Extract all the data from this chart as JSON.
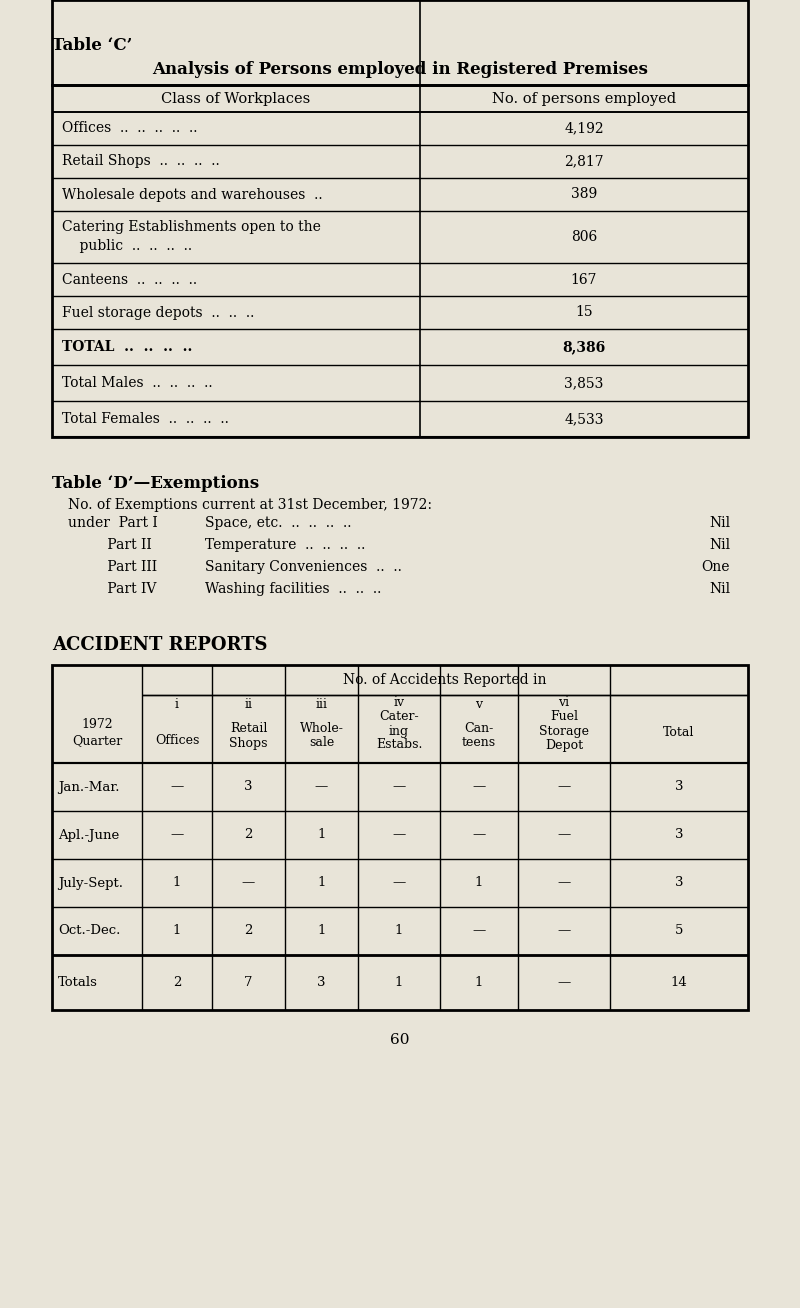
{
  "page_bg": "#e8e4d8",
  "table_c_title": "Table ‘C’",
  "table_c_subtitle": "Analysis of Persons employed in Registered Premises",
  "table_c_col1_header": "Class of Workplaces",
  "table_c_col2_header": "No. of persons employed",
  "table_c_rows": [
    [
      "Offices  ..  ..  ..  ..  ..",
      "4,192",
      false
    ],
    [
      "Retail Shops  ..  ..  ..  ..",
      "2,817",
      false
    ],
    [
      "Wholesale depots and warehouses  ..",
      "389",
      false
    ],
    [
      "Catering Establishments open to the\n    public  ..  ..  ..  ..",
      "806",
      false
    ],
    [
      "Canteens  ..  ..  ..  ..",
      "167",
      false
    ],
    [
      "Fuel storage depots  ..  ..  ..",
      "15",
      false
    ],
    [
      "TOTAL  ..  ..  ..  ..",
      "8,386",
      true
    ],
    [
      "Total Males  ..  ..  ..  ..",
      "3,853",
      false
    ],
    [
      "Total Females  ..  ..  ..  ..",
      "4,533",
      false
    ]
  ],
  "table_d_title": "Table ‘D’—Exemptions",
  "table_d_intro": "No. of Exemptions current at 31st December, 1972:",
  "table_d_rows": [
    [
      "under  Part I",
      "Space, etc.  ..  ..  ..  ..",
      "Nil"
    ],
    [
      "         Part II",
      "Temperature  ..  ..  ..  ..",
      "Nil"
    ],
    [
      "         Part III",
      "Sanitary Conveniences  ..  ..",
      "One"
    ],
    [
      "         Part IV",
      "Washing facilities  ..  ..  ..",
      "Nil"
    ]
  ],
  "accident_title": "ACCIDENT REPORTS",
  "accident_header_top": "No. of Accidents Reported in",
  "accident_rows": [
    [
      "Jan.-Mar.",
      "—",
      "3",
      "—",
      "—",
      "—",
      "—",
      "3"
    ],
    [
      "Apl.-June",
      "—",
      "2",
      "1",
      "—",
      "—",
      "—",
      "3"
    ],
    [
      "July-Sept.",
      "1",
      "—",
      "1",
      "—",
      "1",
      "—",
      "3"
    ],
    [
      "Oct.-Dec.",
      "1",
      "2",
      "1",
      "1",
      "—",
      "—",
      "5"
    ]
  ],
  "accident_totals": [
    "Totals",
    "2",
    "7",
    "3",
    "1",
    "1",
    "—",
    "14"
  ],
  "page_number": "60"
}
